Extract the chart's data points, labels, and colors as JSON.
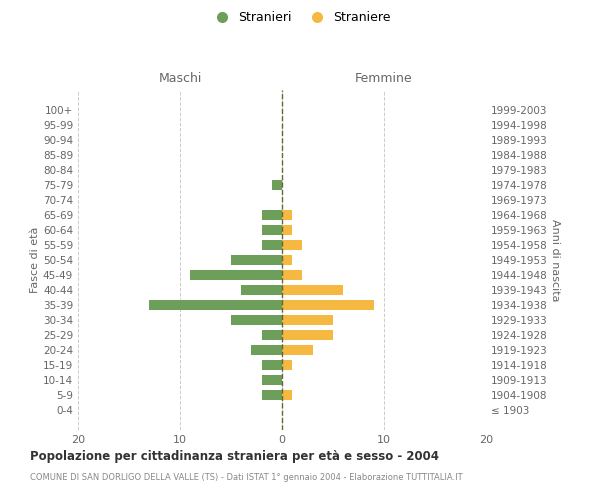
{
  "age_groups": [
    "100+",
    "95-99",
    "90-94",
    "85-89",
    "80-84",
    "75-79",
    "70-74",
    "65-69",
    "60-64",
    "55-59",
    "50-54",
    "45-49",
    "40-44",
    "35-39",
    "30-34",
    "25-29",
    "20-24",
    "15-19",
    "10-14",
    "5-9",
    "0-4"
  ],
  "birth_years": [
    "≤ 1903",
    "1904-1908",
    "1909-1913",
    "1914-1918",
    "1919-1923",
    "1924-1928",
    "1929-1933",
    "1934-1938",
    "1939-1943",
    "1944-1948",
    "1949-1953",
    "1954-1958",
    "1959-1963",
    "1964-1968",
    "1969-1973",
    "1974-1978",
    "1979-1983",
    "1984-1988",
    "1989-1993",
    "1994-1998",
    "1999-2003"
  ],
  "maschi": [
    0,
    0,
    0,
    0,
    0,
    1,
    0,
    2,
    2,
    2,
    5,
    9,
    4,
    13,
    5,
    2,
    3,
    2,
    2,
    2,
    0
  ],
  "femmine": [
    0,
    0,
    0,
    0,
    0,
    0,
    0,
    1,
    1,
    2,
    1,
    2,
    6,
    9,
    5,
    5,
    3,
    1,
    0,
    1,
    0
  ],
  "maschi_color": "#6d9e5a",
  "femmine_color": "#f5b942",
  "grid_color": "#cccccc",
  "center_line_color": "#666633",
  "title": "Popolazione per cittadinanza straniera per età e sesso - 2004",
  "subtitle": "COMUNE DI SAN DORLIGO DELLA VALLE (TS) - Dati ISTAT 1° gennaio 2004 - Elaborazione TUTTITALIA.IT",
  "xlabel_left": "Maschi",
  "xlabel_right": "Femmine",
  "ylabel_left": "Fasce di età",
  "ylabel_right": "Anni di nascita",
  "legend_maschi": "Stranieri",
  "legend_femmine": "Straniere",
  "xlim": 20,
  "background_color": "#ffffff"
}
